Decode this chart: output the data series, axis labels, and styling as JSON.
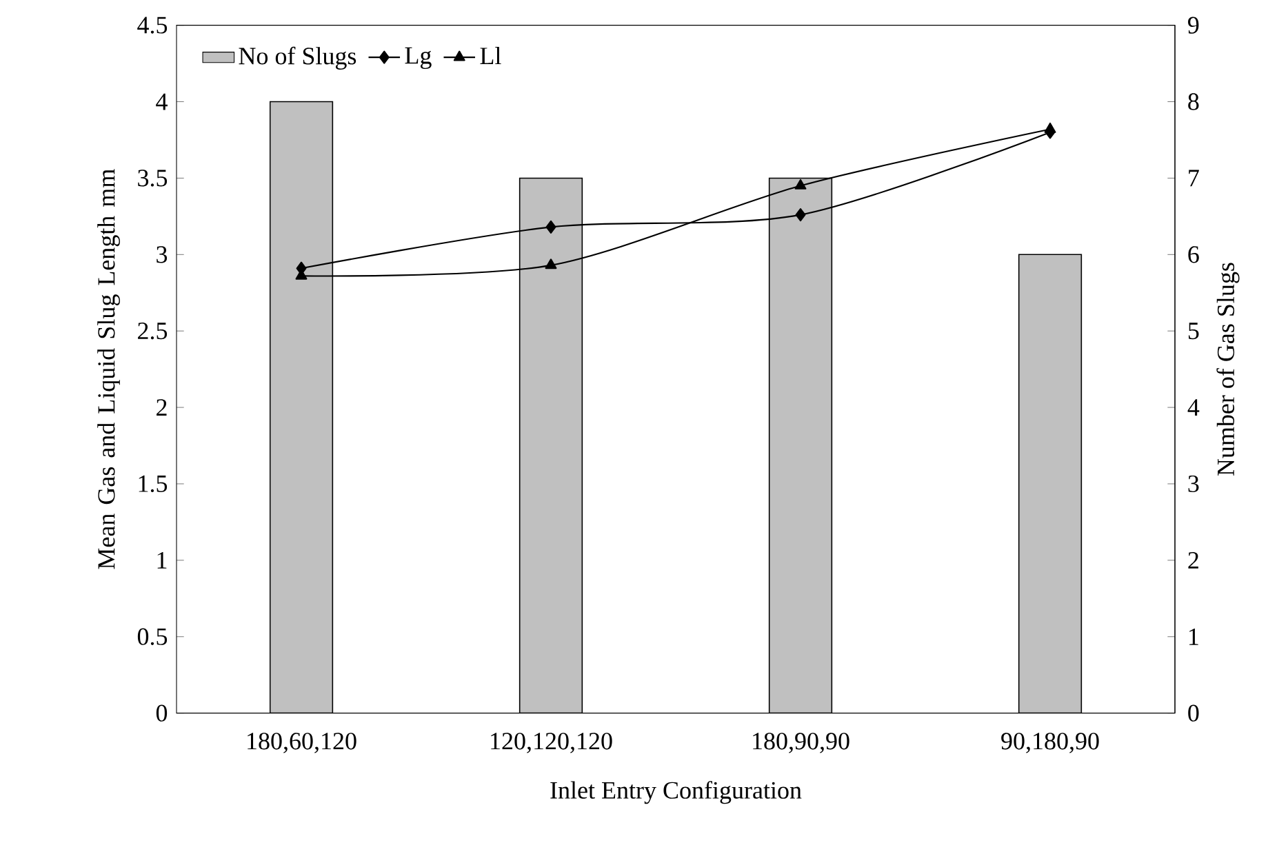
{
  "chart_data": {
    "type": "bar",
    "xlabel": "Inlet Entry Configuration",
    "ylabel": "Mean Gas and Liquid Slug Length mm",
    "y2label": "Number of Gas Slugs",
    "categories": [
      "180,60,120",
      "120,120,120",
      "180,90,90",
      "90,180,90"
    ],
    "series": [
      {
        "name": "No of Slugs",
        "axis": "y2",
        "color": "#c0c0c0",
        "values": [
          8,
          7,
          7,
          6
        ]
      },
      {
        "name": "Lg",
        "type": "line",
        "marker": "diamond",
        "color": "#000000",
        "values": [
          2.91,
          3.18,
          3.26,
          3.8
        ]
      },
      {
        "name": "Ll",
        "type": "line",
        "marker": "triangle",
        "color": "#000000",
        "values": [
          2.86,
          2.93,
          3.45,
          3.82
        ]
      }
    ],
    "ylim": [
      0,
      4.5
    ],
    "yticks": [
      0,
      0.5,
      1,
      1.5,
      2,
      2.5,
      3,
      3.5,
      4,
      4.5
    ],
    "y2lim": [
      0,
      9
    ],
    "y2ticks": [
      0,
      1,
      2,
      3,
      4,
      5,
      6,
      7,
      8,
      9
    ],
    "legend": "top left"
  }
}
